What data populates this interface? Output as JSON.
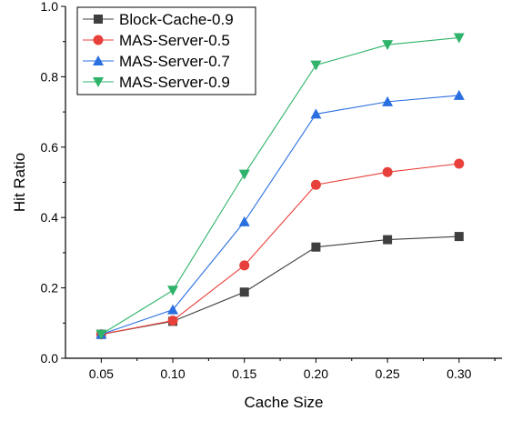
{
  "chart_data": {
    "type": "line",
    "title": "",
    "xlabel": "Cache Size",
    "ylabel": "Hit Ratio",
    "x": [
      0.05,
      0.1,
      0.15,
      0.2,
      0.25,
      0.3
    ],
    "x_tick_labels": [
      "0.05",
      "0.10",
      "0.15",
      "0.20",
      "0.25",
      "0.30"
    ],
    "xlim": [
      0.025,
      0.33
    ],
    "ylim": [
      0.0,
      1.0
    ],
    "y_ticks": [
      0.0,
      0.2,
      0.4,
      0.6,
      0.8,
      1.0
    ],
    "y_tick_labels": [
      "0.0",
      "0.2",
      "0.4",
      "0.6",
      "0.8",
      "1.0"
    ],
    "grid": false,
    "legend_position": "top-left",
    "series": [
      {
        "name": "Block-Cache-0.9",
        "color": "#3f3f3f",
        "marker": "square",
        "values": [
          0.068,
          0.105,
          0.188,
          0.316,
          0.337,
          0.346
        ]
      },
      {
        "name": "MAS-Server-0.5",
        "color": "#e8403a",
        "marker": "circle",
        "values": [
          0.068,
          0.107,
          0.264,
          0.493,
          0.529,
          0.553
        ]
      },
      {
        "name": "MAS-Server-0.7",
        "color": "#2a6fe0",
        "marker": "triangle-up",
        "values": [
          0.068,
          0.138,
          0.388,
          0.694,
          0.729,
          0.747
        ]
      },
      {
        "name": "MAS-Server-0.9",
        "color": "#2fb36b",
        "marker": "triangle-down",
        "values": [
          0.068,
          0.193,
          0.523,
          0.833,
          0.891,
          0.911
        ]
      }
    ]
  }
}
